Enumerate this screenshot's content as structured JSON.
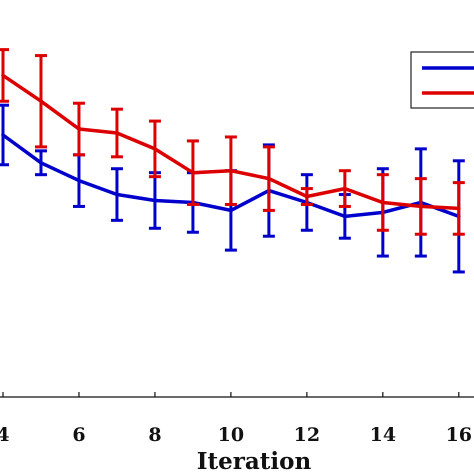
{
  "chart_data": {
    "type": "line",
    "xlabel": "Iteration",
    "x_ticks": [
      4,
      6,
      8,
      10,
      12,
      14,
      16
    ],
    "x_tick_labels": [
      "4",
      "6",
      "8",
      "10",
      "12",
      "14",
      "16"
    ],
    "xlim": [
      4,
      16.4
    ],
    "ylim": [
      0,
      1
    ],
    "series": [
      {
        "color": "#0000cc",
        "x": [
          4,
          5,
          6,
          7,
          8,
          9,
          10,
          11,
          12,
          13,
          14,
          15,
          16
        ],
        "y": [
          0.66,
          0.59,
          0.545,
          0.51,
          0.495,
          0.49,
          0.47,
          0.52,
          0.49,
          0.455,
          0.465,
          0.49,
          0.455
        ],
        "err": [
          0.075,
          0.03,
          0.065,
          0.065,
          0.07,
          0.075,
          0.1,
          0.115,
          0.07,
          0.055,
          0.11,
          0.135,
          0.14
        ]
      },
      {
        "color": "#dd0000",
        "x": [
          4,
          5,
          6,
          7,
          8,
          9,
          10,
          11,
          12,
          13,
          14,
          15,
          16
        ],
        "y": [
          0.81,
          0.745,
          0.675,
          0.665,
          0.625,
          0.565,
          0.57,
          0.55,
          0.505,
          0.525,
          0.49,
          0.48,
          0.475
        ],
        "err": [
          0.065,
          0.115,
          0.065,
          0.06,
          0.07,
          0.08,
          0.085,
          0.08,
          0.02,
          0.045,
          0.07,
          0.07,
          0.065
        ]
      }
    ],
    "legend": {
      "placement": "top-right"
    }
  }
}
